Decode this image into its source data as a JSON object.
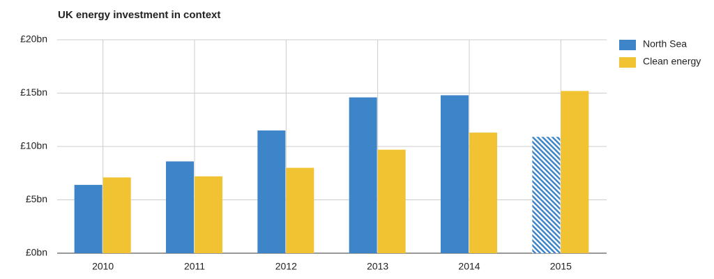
{
  "chart_data": {
    "type": "bar",
    "title": "UK energy investment in context",
    "categories": [
      "2010",
      "2011",
      "2012",
      "2013",
      "2014",
      "2015"
    ],
    "series": [
      {
        "name": "North Sea",
        "color": "#3d85c8",
        "values": [
          6.4,
          8.6,
          11.5,
          14.6,
          14.8,
          10.9
        ],
        "hatched_indices": [
          5
        ]
      },
      {
        "name": "Clean energy",
        "color": "#f1c232",
        "values": [
          7.1,
          7.2,
          8.0,
          9.7,
          11.3,
          15.2
        ]
      }
    ],
    "ylim": [
      0,
      20
    ],
    "yticks": [
      {
        "value": 0,
        "label": "£0bn"
      },
      {
        "value": 5,
        "label": "£5bn"
      },
      {
        "value": 10,
        "label": "£10bn"
      },
      {
        "value": 15,
        "label": "£15bn"
      },
      {
        "value": 20,
        "label": "£20bn"
      }
    ],
    "grid": true,
    "legend": "right"
  }
}
